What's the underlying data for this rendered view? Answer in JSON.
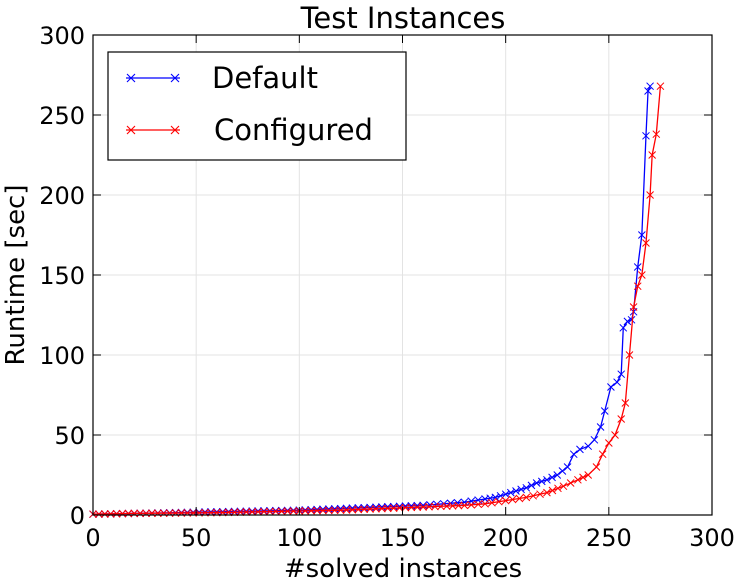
{
  "chart_data": {
    "type": "line",
    "title": "Test Instances",
    "xlabel": "#solved instances",
    "ylabel": "Runtime [sec]",
    "xlim": [
      0,
      300
    ],
    "ylim": [
      0,
      300
    ],
    "xticks": [
      0,
      50,
      100,
      150,
      200,
      250,
      300
    ],
    "yticks": [
      0,
      50,
      100,
      150,
      200,
      250,
      300
    ],
    "grid": true,
    "legend_position": "top-left",
    "marker": "x",
    "series": [
      {
        "name": "Default",
        "color": "#0000ff",
        "points": [
          [
            0,
            0.5
          ],
          [
            20,
            1
          ],
          [
            40,
            1.5
          ],
          [
            60,
            2
          ],
          [
            80,
            2.5
          ],
          [
            100,
            3
          ],
          [
            120,
            4
          ],
          [
            140,
            5
          ],
          [
            160,
            6
          ],
          [
            170,
            7
          ],
          [
            180,
            8
          ],
          [
            190,
            10
          ],
          [
            195,
            11
          ],
          [
            200,
            13
          ],
          [
            205,
            15
          ],
          [
            210,
            17
          ],
          [
            215,
            20
          ],
          [
            220,
            22
          ],
          [
            225,
            25
          ],
          [
            230,
            30
          ],
          [
            233,
            38
          ],
          [
            236,
            41
          ],
          [
            240,
            43
          ],
          [
            243,
            47
          ],
          [
            246,
            55
          ],
          [
            248,
            65
          ],
          [
            251,
            80
          ],
          [
            254,
            83
          ],
          [
            256,
            88
          ],
          [
            257,
            117
          ],
          [
            259,
            121
          ],
          [
            261,
            122
          ],
          [
            262,
            127
          ],
          [
            264,
            155
          ],
          [
            266,
            175
          ],
          [
            268,
            237
          ],
          [
            269,
            265
          ],
          [
            270,
            268
          ]
        ]
      },
      {
        "name": "Configured",
        "color": "#ff0000",
        "points": [
          [
            0,
            0.5
          ],
          [
            20,
            1
          ],
          [
            40,
            1.2
          ],
          [
            60,
            1.5
          ],
          [
            80,
            2
          ],
          [
            100,
            2.5
          ],
          [
            120,
            3
          ],
          [
            140,
            4
          ],
          [
            160,
            5
          ],
          [
            180,
            6
          ],
          [
            190,
            7
          ],
          [
            200,
            9
          ],
          [
            210,
            11
          ],
          [
            220,
            14
          ],
          [
            228,
            18
          ],
          [
            235,
            22
          ],
          [
            240,
            25
          ],
          [
            244,
            30
          ],
          [
            247,
            38
          ],
          [
            250,
            45
          ],
          [
            253,
            50
          ],
          [
            256,
            60
          ],
          [
            258,
            70
          ],
          [
            260,
            100
          ],
          [
            262,
            130
          ],
          [
            264,
            143
          ],
          [
            266,
            150
          ],
          [
            268,
            170
          ],
          [
            270,
            200
          ],
          [
            271,
            225
          ],
          [
            273,
            238
          ],
          [
            275,
            268
          ]
        ]
      }
    ]
  }
}
